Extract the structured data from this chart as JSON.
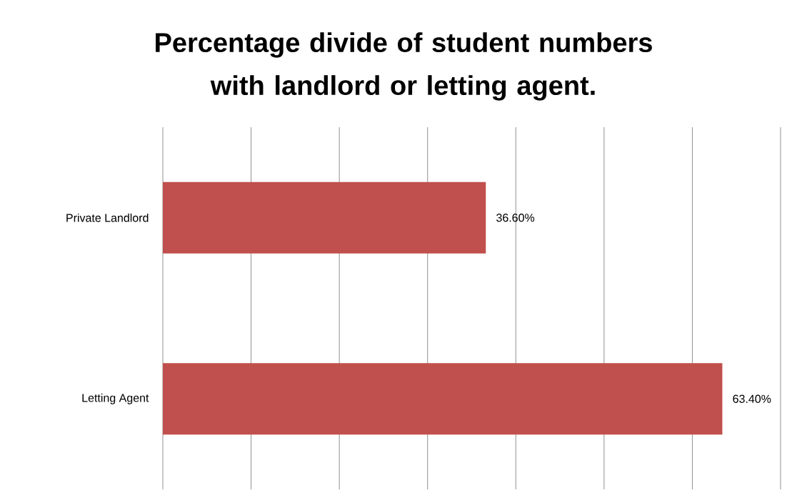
{
  "chart_data": {
    "type": "bar",
    "orientation": "horizontal",
    "title": "Percentage divide of student numbers with landlord or letting agent.",
    "categories": [
      "Private Landlord",
      "Letting Agent"
    ],
    "values": [
      36.6,
      63.4
    ],
    "value_labels": [
      "36.60%",
      "63.40%"
    ],
    "color": "#c0504d",
    "xlim": [
      0,
      70
    ],
    "xticks": [
      {
        "value": 0,
        "label": null
      },
      {
        "value": 10,
        "label": null
      },
      {
        "value": 20,
        "label": null
      },
      {
        "value": 30,
        "label": null
      },
      {
        "value": 40,
        "label": null
      },
      {
        "value": 50,
        "label": null
      },
      {
        "value": 60,
        "label": null
      },
      {
        "value": 70,
        "label": null
      }
    ],
    "grid": "x",
    "tick_labels": "y"
  }
}
